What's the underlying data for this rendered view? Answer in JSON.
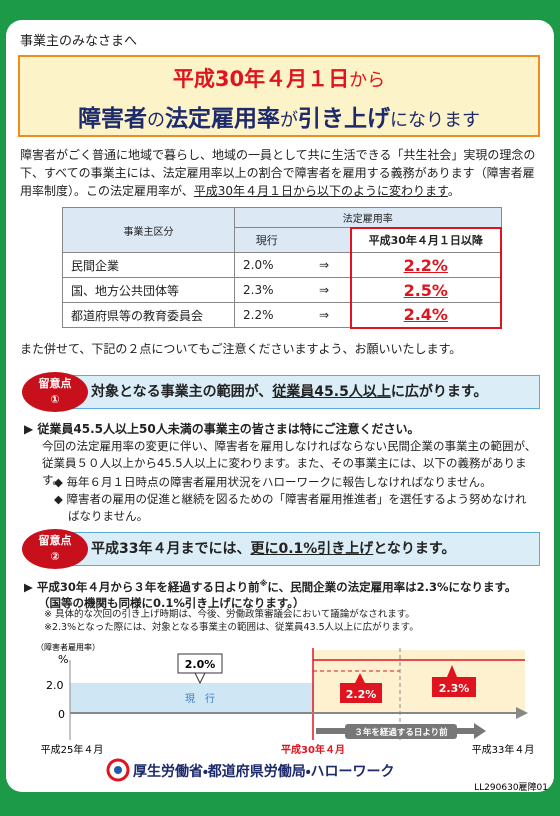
{
  "header": {
    "greeting": "事業主のみなさまへ",
    "title_line1": [
      "平成30年４月１日",
      "から"
    ],
    "title_line2": [
      "障害者",
      "の",
      "法定雇用率",
      "が",
      "引き上げ",
      "になります"
    ]
  },
  "intro": [
    "障害者がごく普通に地域で暮らし、地域の一員として共に生活できる「共生社会」実現の理念の下、すべての事業主には、法定雇用率以上の割合で障害者を雇用する義務があります（障害者雇用率制度）。この法定雇用率が、",
    "平成30年４月１日から以下のように変わります",
    "。"
  ],
  "table": {
    "header_category": "事業主区分",
    "header_group": "法定雇用率",
    "header_current": "現行",
    "header_new": "平成30年４月１日以降",
    "rows": [
      [
        "民間企業",
        "2.0%",
        "⇒",
        "2.2%"
      ],
      [
        "国、地方公共団体等",
        "2.3%",
        "⇒",
        "2.5%"
      ],
      [
        "都道府県等の教育委員会",
        "2.2%",
        "⇒",
        "2.4%"
      ]
    ]
  },
  "notice": "また併せて、下記の２点についてもご注意くださいますよう、お願いいたします。",
  "point1": {
    "badge": [
      "留意点",
      "①"
    ],
    "heading": [
      "対象となる事業主の範囲が、",
      "従業員45.5人以上",
      "に広がります。"
    ],
    "subhead": "従業員45.5人以上50人未満の事業主の皆さまは特にご注意ください。",
    "body": "今回の法定雇用率の変更に伴い、障害者を雇用しなければならない民間企業の事業主の範囲が、従業員５０人以上から45.5人以上に変わります。また、その事業主には、以下の義務があります。",
    "duties": [
      "毎年６月１日時点の障害者雇用状況をハローワークに報告しなければなりません。",
      "障害者の雇用の促進と継続を図るための「障害者雇用推進者」を選任するよう努めなければなりません。"
    ]
  },
  "point2": {
    "badge": [
      "留意点",
      "②"
    ],
    "heading": [
      "平成33年４月までには、",
      "更に0.1%引き上げ",
      "となります。"
    ],
    "subhead": [
      "平成30年４月から３年を経過する日より前",
      "※",
      "に、民間企業の法定雇用率は2.3%になります。"
    ],
    "subhead2": "（国等の機関も同様に0.1%引き上げになります。）",
    "notes": [
      "※ 具体的な次回の引き上げ時期は、今後、労働政策審議会において議論がなされます。",
      "※2.3%となった際には、対象となる事業主の範囲は、従業員43.5人以上に広がります。"
    ]
  },
  "diagram": {
    "y_label": "（障害者雇用率）",
    "unit": "%",
    "tick_high": "2.0",
    "tick_zero": "0",
    "current_label": "現　行",
    "callout_current": "2.0%",
    "callout_mid": "2.2%",
    "callout_end": "2.3%",
    "span_label": "３年を経過する日より前",
    "x_labels": [
      "平成25年４月",
      "平成30年４月",
      "平成33年４月"
    ]
  },
  "footer": {
    "org": "厚生労働省・都道府県労働局・ハローワーク",
    "code": "LL290630雇障01"
  }
}
